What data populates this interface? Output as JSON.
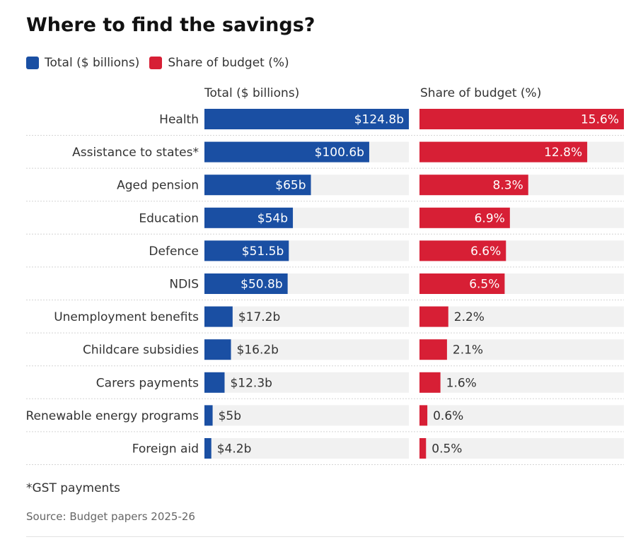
{
  "title": "Where to find the savings?",
  "legend": [
    {
      "label": "Total ($ billions)",
      "color": "#1a4fa3"
    },
    {
      "label": "Share of budget (%)",
      "color": "#d71f35"
    }
  ],
  "footnote": "*GST payments",
  "source": "Source: Budget papers 2025-26",
  "chart_data": {
    "type": "bar",
    "orientation": "horizontal",
    "title": "Where to find the savings?",
    "categories": [
      "Health",
      "Assistance to states*",
      "Aged pension",
      "Education",
      "Defence",
      "NDIS",
      "Unemployment benefits",
      "Childcare subsidies",
      "Carers payments",
      "Renewable energy programs",
      "Foreign aid"
    ],
    "series": [
      {
        "name": "Total ($ billions)",
        "color": "#1a4fa3",
        "values": [
          124.8,
          100.6,
          65,
          54,
          51.5,
          50.8,
          17.2,
          16.2,
          12.3,
          5,
          4.2
        ],
        "labels": [
          "$124.8b",
          "$100.6b",
          "$65b",
          "$54b",
          "$51.5b",
          "$50.8b",
          "$17.2b",
          "$16.2b",
          "$12.3b",
          "$5b",
          "$4.2b"
        ],
        "max": 124.8
      },
      {
        "name": "Share of budget (%)",
        "color": "#d71f35",
        "values": [
          15.6,
          12.8,
          8.3,
          6.9,
          6.6,
          6.5,
          2.2,
          2.1,
          1.6,
          0.6,
          0.5
        ],
        "labels": [
          "15.6%",
          "12.8%",
          "8.3%",
          "6.9%",
          "6.6%",
          "6.5%",
          "2.2%",
          "2.1%",
          "1.6%",
          "0.6%",
          "0.5%"
        ],
        "max": 15.6
      }
    ]
  }
}
